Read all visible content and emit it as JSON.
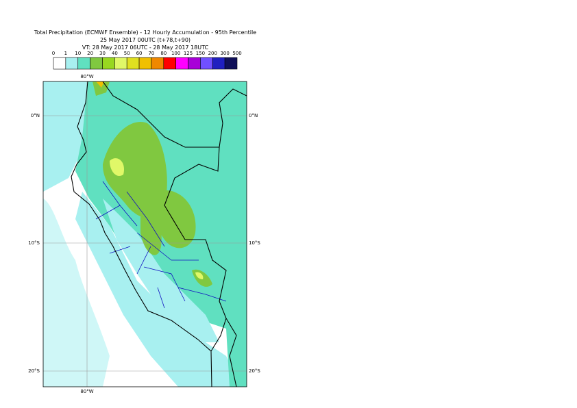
{
  "header": {
    "title": "Total Precipitation (ECMWF Ensemble) - 12 Hourly Accumulation - 95th Percentile",
    "base": "25 May 2017 00UTC (t+78,t+90)",
    "valid": "VT: 28 May 2017 06UTC - 28 May 2017 18UTC"
  },
  "legend": {
    "levels": [
      0,
      1,
      10,
      20,
      30,
      40,
      50,
      60,
      70,
      80,
      100,
      125,
      150,
      200,
      300,
      500
    ],
    "colors": [
      "#ffffff",
      "#a8f0f0",
      "#60e0c0",
      "#80c840",
      "#98d820",
      "#e0f868",
      "#e0e020",
      "#f0c000",
      "#f08800",
      "#ff0000",
      "#ff00ff",
      "#a800d8",
      "#7050ff",
      "#2020c0",
      "#101058"
    ]
  },
  "map": {
    "lon_top": "80°W",
    "lon_bottom": "80°W",
    "lat_left": [
      "0°N",
      "10°S",
      "20°S"
    ],
    "lat_right": [
      "0°N",
      "10°S",
      "20°S"
    ]
  }
}
